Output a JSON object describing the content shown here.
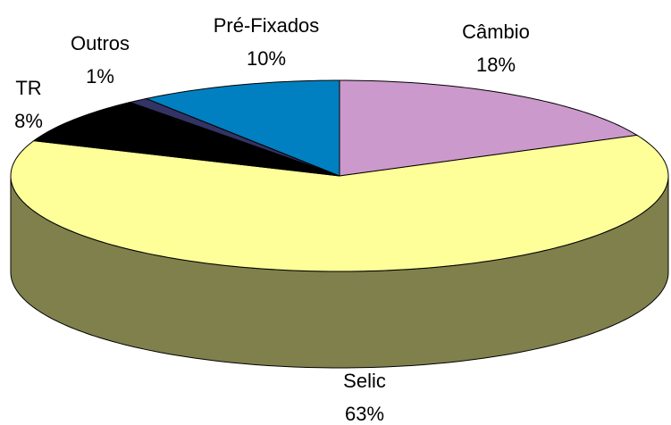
{
  "chart_data": {
    "type": "pie3d",
    "categories": [
      "Câmbio",
      "Selic",
      "TR",
      "Outros",
      "Pré-Fixados"
    ],
    "values": [
      18,
      63,
      8,
      1,
      10
    ],
    "value_labels": [
      "18%",
      "63%",
      "8%",
      "1%",
      "10%"
    ],
    "colors": [
      "#cc99cc",
      "#ffff99",
      "#000000",
      "#333366",
      "#0080c0"
    ]
  }
}
